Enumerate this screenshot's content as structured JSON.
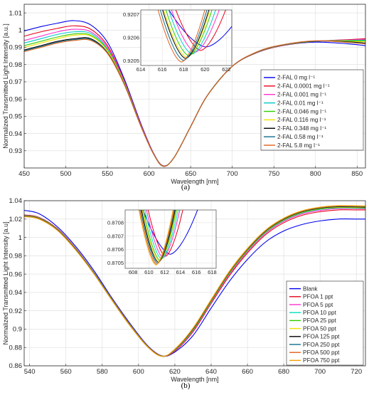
{
  "chart_data": [
    {
      "type": "line",
      "panel_label": "(a)",
      "xlabel": "Wavelength [nm]",
      "ylabel": "Normalized Transmitted Light Intensity [a.u.]",
      "xlim": [
        450,
        860
      ],
      "ylim": [
        0.92,
        1.015
      ],
      "xticks": [
        450,
        500,
        550,
        600,
        650,
        700,
        750,
        800,
        850
      ],
      "yticks": [
        0.93,
        0.94,
        0.95,
        0.96,
        0.97,
        0.98,
        0.99,
        1,
        1.01
      ],
      "grid": true,
      "legend_position": "right",
      "x": [
        450,
        470,
        490,
        510,
        530,
        550,
        570,
        590,
        605,
        617,
        630,
        650,
        670,
        700,
        730,
        760,
        800,
        840,
        860
      ],
      "series": [
        {
          "name": "2-FAL 0 mg l⁻¹",
          "color": "#0000ee",
          "values": [
            0.9995,
            1.002,
            1.004,
            1.0055,
            1.003,
            0.993,
            0.972,
            0.946,
            0.929,
            0.9213,
            0.926,
            0.944,
            0.962,
            0.979,
            0.987,
            0.991,
            0.993,
            0.992,
            0.991
          ]
        },
        {
          "name": "2-FAL 0.0001 mg l⁻¹",
          "color": "#e8001c",
          "values": [
            0.9965,
            0.999,
            1.001,
            1.0025,
            1.0005,
            0.991,
            0.971,
            0.9455,
            0.9288,
            0.9212,
            0.926,
            0.944,
            0.962,
            0.979,
            0.987,
            0.991,
            0.9935,
            0.9945,
            0.995
          ]
        },
        {
          "name": "2-FAL 0.001 mg l⁻¹",
          "color": "#ff33cc",
          "values": [
            0.994,
            0.9965,
            0.999,
            1.0005,
            0.999,
            0.99,
            0.9705,
            0.9452,
            0.9287,
            0.9211,
            0.926,
            0.944,
            0.962,
            0.979,
            0.9872,
            0.9912,
            0.9935,
            0.9942,
            0.9946
          ]
        },
        {
          "name": "2-FAL 0.01 mg l⁻¹",
          "color": "#00c9c9",
          "values": [
            0.9925,
            0.995,
            0.9975,
            0.999,
            0.998,
            0.989,
            0.97,
            0.9448,
            0.9286,
            0.9211,
            0.926,
            0.944,
            0.962,
            0.979,
            0.9872,
            0.9912,
            0.9935,
            0.994,
            0.9942
          ]
        },
        {
          "name": "2-FAL 0.046 mg l⁻¹",
          "color": "#33cc00",
          "values": [
            0.991,
            0.9935,
            0.996,
            0.9978,
            0.997,
            0.9885,
            0.9698,
            0.9447,
            0.9286,
            0.9211,
            0.926,
            0.944,
            0.962,
            0.979,
            0.9873,
            0.9913,
            0.9936,
            0.9938,
            0.9938
          ]
        },
        {
          "name": "2-FAL 0.116 mg l⁻¹",
          "color": "#f0e000",
          "values": [
            0.99,
            0.9925,
            0.995,
            0.997,
            0.9965,
            0.988,
            0.9695,
            0.9446,
            0.9286,
            0.9211,
            0.926,
            0.944,
            0.962,
            0.979,
            0.9873,
            0.9913,
            0.9936,
            0.9935,
            0.9932
          ]
        },
        {
          "name": "2-FAL 0.348 mg l⁻¹",
          "color": "#000000",
          "values": [
            0.9885,
            0.991,
            0.9935,
            0.995,
            0.995,
            0.987,
            0.969,
            0.9445,
            0.9285,
            0.921,
            0.926,
            0.944,
            0.962,
            0.979,
            0.9874,
            0.9914,
            0.9936,
            0.9932,
            0.9925
          ]
        },
        {
          "name": "2-FAL 0.58 mg l⁻¹",
          "color": "#0f6e8c",
          "values": [
            0.988,
            0.9905,
            0.993,
            0.9945,
            0.9945,
            0.9868,
            0.9688,
            0.9445,
            0.9285,
            0.921,
            0.926,
            0.944,
            0.962,
            0.979,
            0.9874,
            0.9914,
            0.9937,
            0.993,
            0.9922
          ]
        },
        {
          "name": "2-FAL 5.8 mg l⁻¹",
          "color": "#e0601c",
          "values": [
            0.9875,
            0.99,
            0.9925,
            0.994,
            0.994,
            0.9865,
            0.9687,
            0.9444,
            0.9285,
            0.921,
            0.926,
            0.944,
            0.962,
            0.979,
            0.9875,
            0.9915,
            0.9938,
            0.9928,
            0.992
          ]
        }
      ],
      "inset": {
        "xlim": [
          614,
          622.5
        ],
        "ylim": [
          0.92048,
          0.92072
        ],
        "xticks": [
          614,
          616,
          618,
          620,
          622
        ],
        "yticks": [
          0.9205,
          0.9206,
          0.9207
        ],
        "x_offsets": [
          -2.4,
          -1.6,
          -0.8,
          0,
          0.8,
          1.6,
          2.4
        ],
        "curve_x": [
          614.8,
          615.3,
          615.8,
          616.2,
          616.6,
          617.0,
          617.4,
          617.7,
          617.9,
          618.1,
          618.6,
          619.3,
          620.2,
          620.9,
          621.5,
          622.5
        ],
        "series": [
          {
            "color": "#0000ee",
            "min_x": 620.1,
            "min_y": 0.92056,
            "dx": 3.8
          },
          {
            "color": "#e8001c",
            "min_x": 619.6,
            "min_y": 0.920545,
            "dx": 1.6
          },
          {
            "color": "#ff33cc",
            "min_x": 619.1,
            "min_y": 0.920538,
            "dx": 1.35
          },
          {
            "color": "#00c9c9",
            "min_x": 618.8,
            "min_y": 0.92053,
            "dx": 1.2
          },
          {
            "color": "#33cc00",
            "min_x": 618.5,
            "min_y": 0.920522,
            "dx": 1.05
          },
          {
            "color": "#f0e000",
            "min_x": 618.3,
            "min_y": 0.920515,
            "dx": 1.0
          },
          {
            "color": "#000000",
            "min_x": 618.2,
            "min_y": 0.92051,
            "dx": 0.95
          },
          {
            "color": "#0f6e8c",
            "min_x": 618.0,
            "min_y": 0.920502,
            "dx": 0.9
          },
          {
            "color": "#e0601c",
            "min_x": 617.8,
            "min_y": 0.920495,
            "dx": 0.85
          }
        ]
      }
    },
    {
      "type": "line",
      "panel_label": "(b)",
      "xlabel": "Wavelength [nm]",
      "ylabel": "Normalized Transmitted Light Intensity [a.u]",
      "xlim": [
        537,
        725
      ],
      "ylim": [
        0.86,
        1.04
      ],
      "xticks": [
        540,
        560,
        580,
        600,
        620,
        640,
        660,
        680,
        700,
        720
      ],
      "yticks": [
        0.86,
        0.88,
        0.9,
        0.92,
        0.94,
        0.96,
        0.98,
        1,
        1.02,
        1.04
      ],
      "grid": true,
      "legend_position": "right",
      "x": [
        537,
        545,
        555,
        565,
        575,
        585,
        595,
        605,
        613,
        620,
        630,
        640,
        650,
        660,
        670,
        680,
        690,
        700,
        710,
        720,
        725
      ],
      "series": [
        {
          "name": "Blank",
          "color": "#0000ee",
          "values": [
            1.0295,
            1.026,
            1.012,
            0.991,
            0.965,
            0.935,
            0.907,
            0.882,
            0.8708,
            0.875,
            0.893,
            0.923,
            0.952,
            0.976,
            0.995,
            1.007,
            1.014,
            1.018,
            1.02,
            1.02,
            1.02
          ]
        },
        {
          "name": "PFOA 1 ppt",
          "color": "#e8001c",
          "values": [
            1.0245,
            1.022,
            1.01,
            0.989,
            0.963,
            0.934,
            0.906,
            0.8815,
            0.8707,
            0.876,
            0.897,
            0.928,
            0.958,
            0.983,
            1.003,
            1.016,
            1.024,
            1.028,
            1.03,
            1.03,
            1.03
          ]
        },
        {
          "name": "PFOA 5 ppt",
          "color": "#ff33cc",
          "values": [
            1.024,
            1.0215,
            1.0095,
            0.9885,
            0.9628,
            0.9338,
            0.9058,
            0.8813,
            0.8706,
            0.8765,
            0.898,
            0.929,
            0.9595,
            0.9845,
            1.0045,
            1.0175,
            1.0255,
            1.0295,
            1.0315,
            1.0315,
            1.0312
          ]
        },
        {
          "name": "PFOA 10 ppt",
          "color": "#00e0c0",
          "values": [
            1.0238,
            1.0213,
            1.0093,
            0.9883,
            0.9626,
            0.9336,
            0.9056,
            0.8812,
            0.8706,
            0.877,
            0.8988,
            0.9298,
            0.9605,
            0.9855,
            1.0055,
            1.0185,
            1.0265,
            1.0305,
            1.0322,
            1.032,
            1.0318
          ]
        },
        {
          "name": "PFOA 25 ppt",
          "color": "#33cc00",
          "values": [
            1.0236,
            1.0211,
            1.0091,
            0.9881,
            0.9624,
            0.9334,
            0.9054,
            0.8811,
            0.8705,
            0.8772,
            0.8992,
            0.9302,
            0.961,
            0.986,
            1.006,
            1.019,
            1.027,
            1.031,
            1.0326,
            1.0324,
            1.0322
          ]
        },
        {
          "name": "PFOA 50 ppt",
          "color": "#f0e000",
          "values": [
            1.0234,
            1.0209,
            1.0089,
            0.9879,
            0.9622,
            0.9332,
            0.9052,
            0.881,
            0.8705,
            0.8774,
            0.8996,
            0.9306,
            0.9614,
            0.9864,
            1.0064,
            1.0194,
            1.0274,
            1.0314,
            1.033,
            1.0328,
            1.0326
          ]
        },
        {
          "name": "PFOA 125 ppt",
          "color": "#000000",
          "values": [
            1.0232,
            1.0207,
            1.0087,
            0.9877,
            0.962,
            0.933,
            0.905,
            0.8809,
            0.8704,
            0.8776,
            0.9,
            0.931,
            0.9618,
            0.9868,
            1.0068,
            1.0198,
            1.0278,
            1.0318,
            1.0334,
            1.0332,
            1.033
          ]
        },
        {
          "name": "PFOA 250 ppt",
          "color": "#0f6e8c",
          "values": [
            1.023,
            1.0205,
            1.0085,
            0.9875,
            0.9618,
            0.9328,
            0.9048,
            0.8808,
            0.8704,
            0.8778,
            0.9004,
            0.9314,
            0.9622,
            0.9872,
            1.0072,
            1.0202,
            1.0282,
            1.0322,
            1.0338,
            1.0336,
            1.0334
          ]
        },
        {
          "name": "PFOA 500 ppt",
          "color": "#e0601c",
          "values": [
            1.0228,
            1.0203,
            1.0083,
            0.9873,
            0.9616,
            0.9326,
            0.9046,
            0.8807,
            0.8704,
            0.878,
            0.9008,
            0.9318,
            0.9626,
            0.9876,
            1.0076,
            1.0206,
            1.0286,
            1.0326,
            1.0342,
            1.034,
            1.0338
          ]
        },
        {
          "name": "PFOA 750 ppt",
          "color": "#f0a000",
          "values": [
            1.0226,
            1.0201,
            1.0081,
            0.9871,
            0.9614,
            0.9324,
            0.9044,
            0.8806,
            0.8703,
            0.8782,
            0.9012,
            0.9322,
            0.963,
            0.988,
            1.008,
            1.021,
            1.029,
            1.033,
            1.0346,
            1.0344,
            1.0342
          ]
        }
      ],
      "inset": {
        "xlim": [
          607,
          618.5
        ],
        "ylim": [
          0.87046,
          0.870895
        ],
        "xticks": [
          608,
          610,
          612,
          614,
          616,
          618
        ],
        "yticks": [
          0.8705,
          0.8706,
          0.8707,
          0.8708
        ],
        "curve_x": [
          607.5,
          608.3,
          609.0,
          609.6,
          610.1,
          610.5,
          610.9,
          611.2,
          611.5,
          611.9,
          612.4,
          613.1,
          614.0,
          615.0,
          616.0
        ],
        "series": [
          {
            "color": "#0000ee",
            "min_x": 612.7,
            "min_y": 0.870565,
            "dx": 3.3
          },
          {
            "color": "#e8001c",
            "min_x": 612.1,
            "min_y": 0.87055,
            "dx": 1.2
          },
          {
            "color": "#ff33cc",
            "min_x": 611.8,
            "min_y": 0.87054,
            "dx": 1.0
          },
          {
            "color": "#00e0c0",
            "min_x": 611.6,
            "min_y": 0.87053,
            "dx": 0.95
          },
          {
            "color": "#33cc00",
            "min_x": 611.4,
            "min_y": 0.87052,
            "dx": 0.9
          },
          {
            "color": "#f0e000",
            "min_x": 611.3,
            "min_y": 0.870512,
            "dx": 0.88
          },
          {
            "color": "#000000",
            "min_x": 611.2,
            "min_y": 0.870505,
            "dx": 0.86
          },
          {
            "color": "#0f6e8c",
            "min_x": 611.1,
            "min_y": 0.870498,
            "dx": 0.84
          },
          {
            "color": "#e0601c",
            "min_x": 611.0,
            "min_y": 0.87049,
            "dx": 0.82
          },
          {
            "color": "#f0a000",
            "min_x": 610.9,
            "min_y": 0.870485,
            "dx": 0.8
          }
        ]
      }
    }
  ]
}
